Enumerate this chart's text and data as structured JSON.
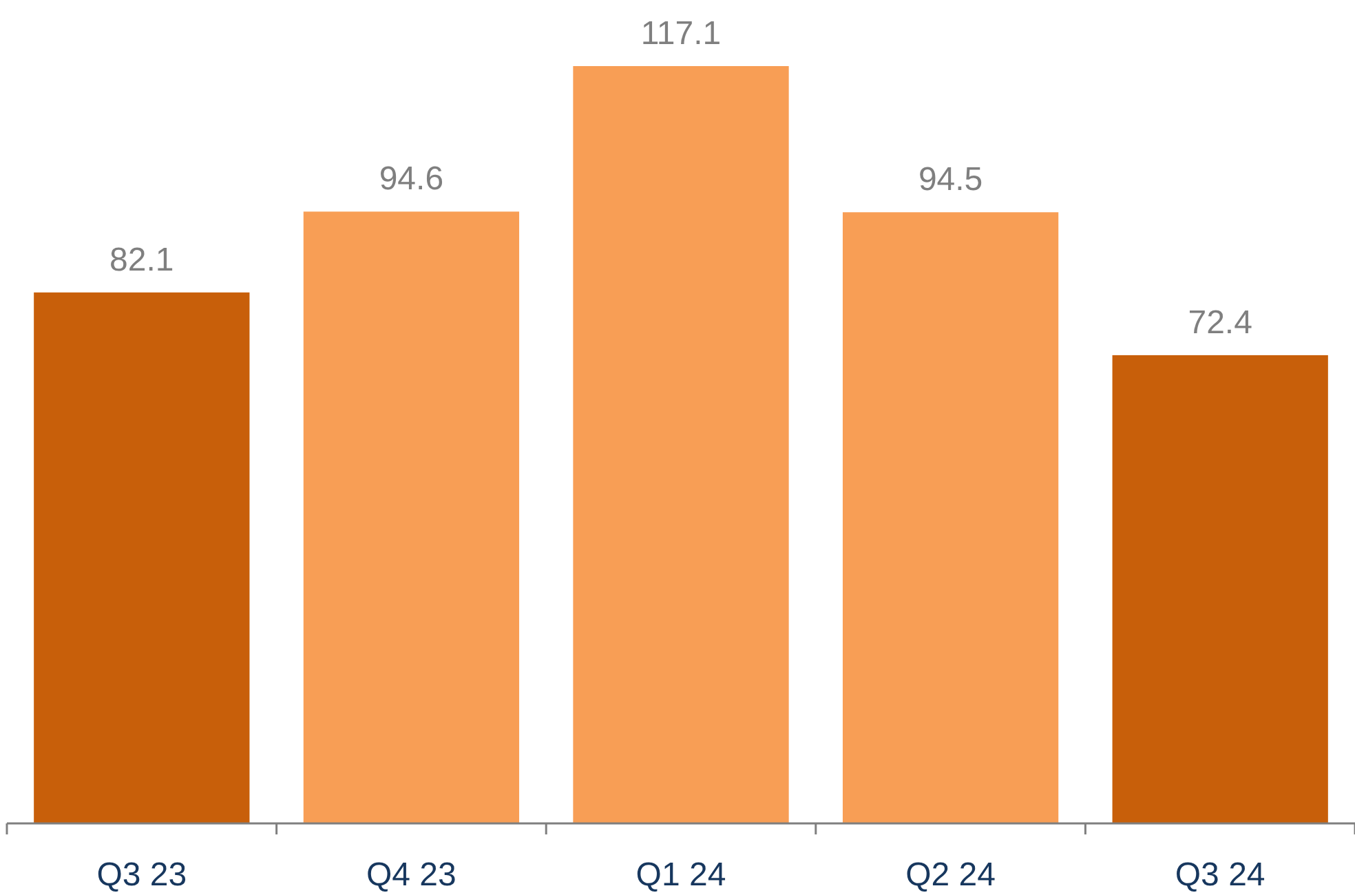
{
  "chart_data": {
    "type": "bar",
    "categories": [
      "Q3 23",
      "Q4 23",
      "Q1 24",
      "Q2 24",
      "Q3 24"
    ],
    "values": [
      82.1,
      94.6,
      117.1,
      94.5,
      72.4
    ],
    "colors": [
      "#c85f0a",
      "#f89e55",
      "#f89e55",
      "#f89e55",
      "#c85f0a"
    ],
    "data_labels": true
  }
}
